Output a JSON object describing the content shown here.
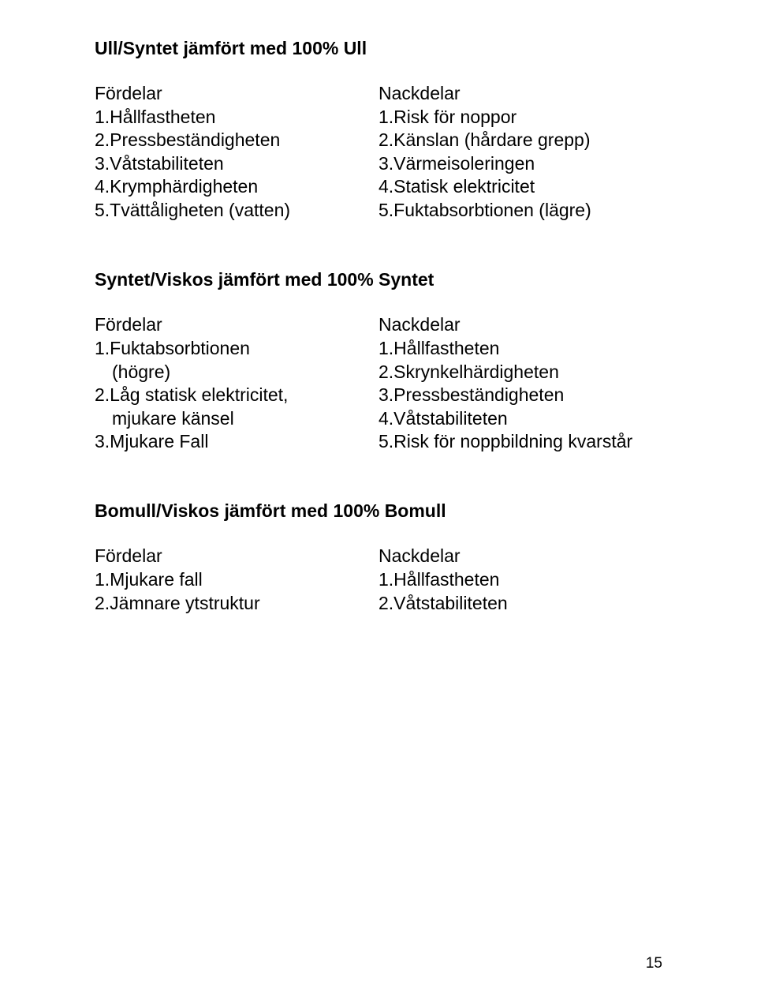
{
  "typography": {
    "font_family": "Arial, Helvetica, sans-serif",
    "body_fontsize": 23,
    "heading_fontsize": 23,
    "pagenum_fontsize": 19,
    "text_color": "#000000",
    "background_color": "#ffffff"
  },
  "page_number": "15",
  "sections": [
    {
      "heading": "Ull/Syntet jämfört med 100% Ull",
      "left": {
        "title": "Fördelar",
        "items": [
          "1.Hållfastheten",
          "2.Pressbeständigheten",
          "3.Våtstabiliteten",
          "4.Krymphärdigheten",
          "5.Tvättåligheten (vatten)"
        ]
      },
      "right": {
        "title": "Nackdelar",
        "items": [
          "1.Risk för noppor",
          "2.Känslan (hårdare grepp)",
          "3.Värmeisoleringen",
          "4.Statisk elektricitet",
          "5.Fuktabsorbtionen (lägre)"
        ]
      }
    },
    {
      "heading": "Syntet/Viskos jämfört med 100% Syntet",
      "left": {
        "title": "Fördelar",
        "items": [
          "1.Fuktabsorbtionen",
          "(högre)",
          "2.Låg statisk elektricitet,",
          "mjukare känsel",
          "3.Mjukare Fall"
        ],
        "indent_lines": [
          1,
          3
        ]
      },
      "right": {
        "title": "Nackdelar",
        "items": [
          "1.Hållfastheten",
          "2.Skrynkelhärdigheten",
          "3.Pressbeständigheten",
          "4.Våtstabiliteten",
          "5.Risk för noppbildning kvarstår"
        ]
      }
    },
    {
      "heading": "Bomull/Viskos jämfört med 100% Bomull",
      "left": {
        "title": "Fördelar",
        "items": [
          "1.Mjukare fall",
          "2.Jämnare ytstruktur"
        ]
      },
      "right": {
        "title": "Nackdelar",
        "items": [
          "1.Hållfastheten",
          "2.Våtstabiliteten"
        ]
      }
    }
  ]
}
